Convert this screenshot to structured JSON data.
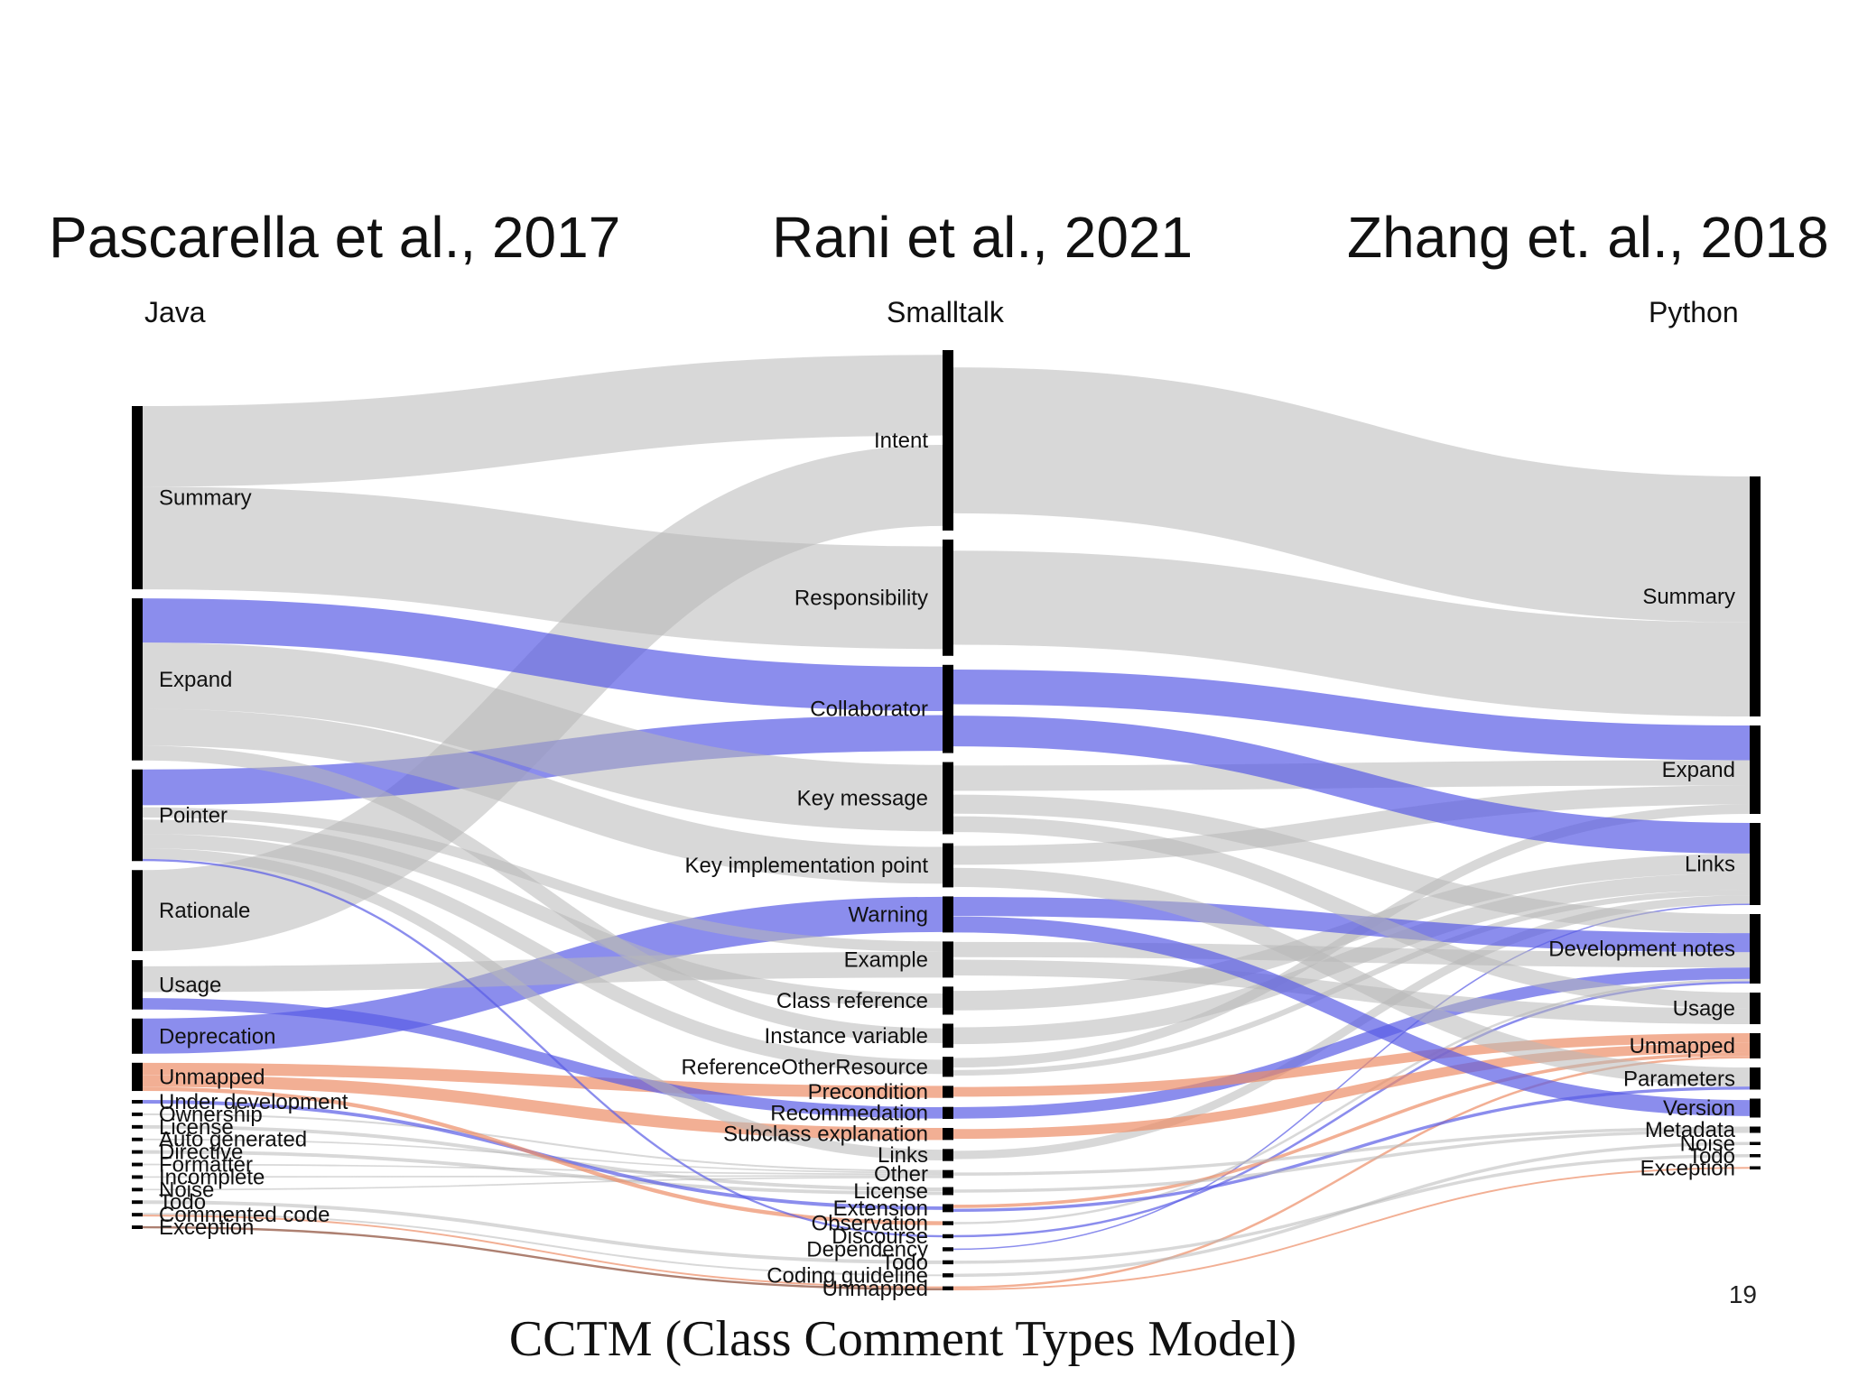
{
  "headings": {
    "left": "Pascarella et al., 2017",
    "middle": "Rani et al., 2021",
    "right": "Zhang et. al., 2018"
  },
  "languages": {
    "left": "Java",
    "middle": "Smalltalk",
    "right": "Python"
  },
  "caption": "CCTM (Class Comment Types Model)",
  "page_number": "19",
  "colors": {
    "gray": "#b8b8b8",
    "blue": "#5a5ce6",
    "orange": "#ec8d66",
    "brown": "#8a4a34",
    "node": "#000000"
  },
  "diagram": {
    "columns": {
      "java": [
        {
          "id": "j_summary",
          "label": "Summary",
          "weight": 52
        },
        {
          "id": "j_expand",
          "label": "Expand",
          "weight": 46
        },
        {
          "id": "j_pointer",
          "label": "Pointer",
          "weight": 26
        },
        {
          "id": "j_rationale",
          "label": "Rationale",
          "weight": 23
        },
        {
          "id": "j_usage",
          "label": "Usage",
          "weight": 14
        },
        {
          "id": "j_deprecation",
          "label": "Deprecation",
          "weight": 10
        },
        {
          "id": "j_unmapped",
          "label": "Unmapped",
          "weight": 8
        },
        {
          "id": "j_underdev",
          "label": "Under development",
          "weight": 1
        },
        {
          "id": "j_ownership",
          "label": "Ownership",
          "weight": 1
        },
        {
          "id": "j_license",
          "label": "License",
          "weight": 1
        },
        {
          "id": "j_autogen",
          "label": "Auto generated",
          "weight": 1
        },
        {
          "id": "j_directive",
          "label": "Directive",
          "weight": 1
        },
        {
          "id": "j_formatter",
          "label": "Formatter",
          "weight": 1
        },
        {
          "id": "j_incomplete",
          "label": "Incomplete",
          "weight": 1
        },
        {
          "id": "j_noise",
          "label": "Noise",
          "weight": 1
        },
        {
          "id": "j_todo",
          "label": "Todo",
          "weight": 1
        },
        {
          "id": "j_commented",
          "label": "Commented code",
          "weight": 1
        },
        {
          "id": "j_exception",
          "label": "Exception",
          "weight": 1
        }
      ],
      "smalltalk": [
        {
          "id": "s_intent",
          "label": "Intent",
          "weight": 45
        },
        {
          "id": "s_resp",
          "label": "Responsibility",
          "weight": 29
        },
        {
          "id": "s_collab",
          "label": "Collaborator",
          "weight": 22
        },
        {
          "id": "s_keymsg",
          "label": "Key message",
          "weight": 18
        },
        {
          "id": "s_keyimpl",
          "label": "Key implementation point",
          "weight": 11
        },
        {
          "id": "s_warning",
          "label": "Warning",
          "weight": 9
        },
        {
          "id": "s_example",
          "label": "Example",
          "weight": 9
        },
        {
          "id": "s_classref",
          "label": "Class reference",
          "weight": 7
        },
        {
          "id": "s_instvar",
          "label": "Instance variable",
          "weight": 6
        },
        {
          "id": "s_refother",
          "label": "ReferenceOtherResource",
          "weight": 5
        },
        {
          "id": "s_precond",
          "label": "Precondition",
          "weight": 3
        },
        {
          "id": "s_recommend",
          "label": "Recommedation",
          "weight": 3
        },
        {
          "id": "s_subclass",
          "label": "Subclass explanation",
          "weight": 3
        },
        {
          "id": "s_links",
          "label": "Links",
          "weight": 3
        },
        {
          "id": "s_other",
          "label": "Other",
          "weight": 2
        },
        {
          "id": "s_license",
          "label": "License",
          "weight": 2
        },
        {
          "id": "s_extension",
          "label": "Extension",
          "weight": 2
        },
        {
          "id": "s_observation",
          "label": "Observation",
          "weight": 1
        },
        {
          "id": "s_discourse",
          "label": "Discourse",
          "weight": 1
        },
        {
          "id": "s_dependency",
          "label": "Dependency",
          "weight": 1
        },
        {
          "id": "s_todo",
          "label": "Todo",
          "weight": 1
        },
        {
          "id": "s_coding",
          "label": "Coding guideline",
          "weight": 1
        },
        {
          "id": "s_unmapped",
          "label": "Unmapped",
          "weight": 1
        }
      ],
      "python": [
        {
          "id": "p_summary",
          "label": "Summary",
          "weight": 76
        },
        {
          "id": "p_expand",
          "label": "Expand",
          "weight": 28
        },
        {
          "id": "p_links",
          "label": "Links",
          "weight": 26
        },
        {
          "id": "p_devnotes",
          "label": "Development notes",
          "weight": 22
        },
        {
          "id": "p_usage",
          "label": "Usage",
          "weight": 10
        },
        {
          "id": "p_unmapped",
          "label": "Unmapped",
          "weight": 8
        },
        {
          "id": "p_params",
          "label": "Parameters",
          "weight": 7
        },
        {
          "id": "p_version",
          "label": "Version",
          "weight": 6
        },
        {
          "id": "p_metadata",
          "label": "Metadata",
          "weight": 2
        },
        {
          "id": "p_noise",
          "label": "Noise",
          "weight": 1
        },
        {
          "id": "p_todo",
          "label": "Todo",
          "weight": 1
        },
        {
          "id": "p_exception",
          "label": "Exception",
          "weight": 1
        }
      ]
    },
    "links": [
      {
        "from": "j_summary",
        "to": "s_intent",
        "color": "gray",
        "weight": 22
      },
      {
        "from": "j_summary",
        "to": "s_resp",
        "color": "gray",
        "weight": 28
      },
      {
        "from": "j_expand",
        "to": "s_collab",
        "color": "blue",
        "weight": 12
      },
      {
        "from": "j_expand",
        "to": "s_keymsg",
        "color": "gray",
        "weight": 18
      },
      {
        "from": "j_expand",
        "to": "s_keyimpl",
        "color": "gray",
        "weight": 10
      },
      {
        "from": "j_expand",
        "to": "s_instvar",
        "color": "gray",
        "weight": 4
      },
      {
        "from": "j_pointer",
        "to": "s_collab",
        "color": "blue",
        "weight": 10
      },
      {
        "from": "j_pointer",
        "to": "s_example",
        "color": "gray",
        "weight": 4
      },
      {
        "from": "j_pointer",
        "to": "s_classref",
        "color": "gray",
        "weight": 4
      },
      {
        "from": "j_pointer",
        "to": "s_refother",
        "color": "gray",
        "weight": 4
      },
      {
        "from": "j_pointer",
        "to": "s_links",
        "color": "gray",
        "weight": 3
      },
      {
        "from": "j_pointer",
        "to": "s_discourse",
        "color": "blue",
        "weight": 0.6
      },
      {
        "from": "j_rationale",
        "to": "s_intent",
        "color": "gray",
        "weight": 22
      },
      {
        "from": "j_usage",
        "to": "s_example",
        "color": "gray",
        "weight": 10
      },
      {
        "from": "j_usage",
        "to": "s_recommend",
        "color": "blue",
        "weight": 3
      },
      {
        "from": "j_deprecation",
        "to": "s_warning",
        "color": "blue",
        "weight": 9
      },
      {
        "from": "j_unmapped",
        "to": "s_precond",
        "color": "orange",
        "weight": 3
      },
      {
        "from": "j_unmapped",
        "to": "s_subclass",
        "color": "orange",
        "weight": 3
      },
      {
        "from": "j_unmapped",
        "to": "s_observation",
        "color": "orange",
        "weight": 1
      },
      {
        "from": "j_underdev",
        "to": "s_extension",
        "color": "blue",
        "weight": 1
      },
      {
        "from": "j_ownership",
        "to": "s_other",
        "color": "gray",
        "weight": 0.6
      },
      {
        "from": "j_license",
        "to": "s_license",
        "color": "gray",
        "weight": 0.6
      },
      {
        "from": "j_autogen",
        "to": "s_other",
        "color": "gray",
        "weight": 0.5
      },
      {
        "from": "j_directive",
        "to": "s_license",
        "color": "gray",
        "weight": 0.5
      },
      {
        "from": "j_formatter",
        "to": "s_other",
        "color": "gray",
        "weight": 0.5
      },
      {
        "from": "j_incomplete",
        "to": "s_other",
        "color": "gray",
        "weight": 0.5
      },
      {
        "from": "j_noise",
        "to": "s_other",
        "color": "gray",
        "weight": 0.5
      },
      {
        "from": "j_todo",
        "to": "s_todo",
        "color": "gray",
        "weight": 0.5
      },
      {
        "from": "j_commented",
        "to": "s_coding",
        "color": "gray",
        "weight": 0.5
      },
      {
        "from": "j_commented",
        "to": "s_unmapped",
        "color": "orange",
        "weight": 0.5
      },
      {
        "from": "j_exception",
        "to": "s_unmapped",
        "color": "brown",
        "weight": 0.6
      },
      {
        "from": "s_intent",
        "to": "p_summary",
        "color": "gray",
        "weight": 45
      },
      {
        "from": "s_resp",
        "to": "p_summary",
        "color": "gray",
        "weight": 29
      },
      {
        "from": "s_collab",
        "to": "p_expand",
        "color": "blue",
        "weight": 11
      },
      {
        "from": "s_collab",
        "to": "p_links",
        "color": "blue",
        "weight": 11
      },
      {
        "from": "s_keymsg",
        "to": "p_expand",
        "color": "gray",
        "weight": 8
      },
      {
        "from": "s_keymsg",
        "to": "p_devnotes",
        "color": "gray",
        "weight": 5
      },
      {
        "from": "s_keymsg",
        "to": "p_usage",
        "color": "gray",
        "weight": 5
      },
      {
        "from": "s_keyimpl",
        "to": "p_expand",
        "color": "gray",
        "weight": 6
      },
      {
        "from": "s_keyimpl",
        "to": "p_params",
        "color": "gray",
        "weight": 5
      },
      {
        "from": "s_warning",
        "to": "p_devnotes",
        "color": "blue",
        "weight": 5
      },
      {
        "from": "s_warning",
        "to": "p_version",
        "color": "blue",
        "weight": 4
      },
      {
        "from": "s_example",
        "to": "p_usage",
        "color": "gray",
        "weight": 5
      },
      {
        "from": "s_example",
        "to": "p_devnotes",
        "color": "gray",
        "weight": 4
      },
      {
        "from": "s_classref",
        "to": "p_links",
        "color": "gray",
        "weight": 7
      },
      {
        "from": "s_instvar",
        "to": "p_links",
        "color": "gray",
        "weight": 6
      },
      {
        "from": "s_refother",
        "to": "p_links",
        "color": "gray",
        "weight": 2
      },
      {
        "from": "s_refother",
        "to": "p_expand",
        "color": "gray",
        "weight": 3
      },
      {
        "from": "s_precond",
        "to": "p_unmapped",
        "color": "orange",
        "weight": 3
      },
      {
        "from": "s_recommend",
        "to": "p_devnotes",
        "color": "blue",
        "weight": 3
      },
      {
        "from": "s_subclass",
        "to": "p_unmapped",
        "color": "orange",
        "weight": 3
      },
      {
        "from": "s_links",
        "to": "p_links",
        "color": "gray",
        "weight": 3
      },
      {
        "from": "s_other",
        "to": "p_metadata",
        "color": "gray",
        "weight": 1.5
      },
      {
        "from": "s_license",
        "to": "p_metadata",
        "color": "gray",
        "weight": 1.5
      },
      {
        "from": "s_extension",
        "to": "p_unmapped",
        "color": "orange",
        "weight": 1
      },
      {
        "from": "s_extension",
        "to": "p_params",
        "color": "blue",
        "weight": 0.8
      },
      {
        "from": "s_observation",
        "to": "p_devnotes",
        "color": "gray",
        "weight": 0.6
      },
      {
        "from": "s_discourse",
        "to": "p_devnotes",
        "color": "blue",
        "weight": 0.6
      },
      {
        "from": "s_dependency",
        "to": "p_links",
        "color": "blue",
        "weight": 0.5
      },
      {
        "from": "s_todo",
        "to": "p_todo",
        "color": "gray",
        "weight": 0.4
      },
      {
        "from": "s_coding",
        "to": "p_noise",
        "color": "gray",
        "weight": 0.4
      },
      {
        "from": "s_unmapped",
        "to": "p_unmapped",
        "color": "orange",
        "weight": 0.8
      },
      {
        "from": "s_unmapped",
        "to": "p_exception",
        "color": "orange",
        "weight": 0.6
      }
    ]
  }
}
